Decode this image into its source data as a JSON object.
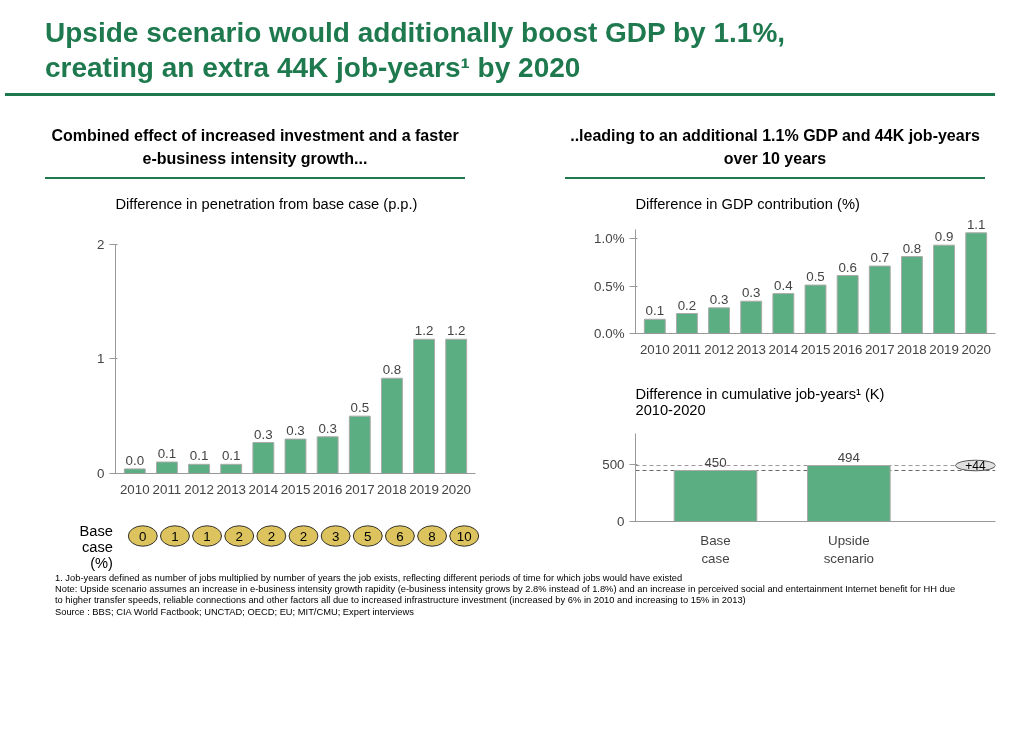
{
  "chart_data": [
    {
      "type": "bar",
      "title": "Upside scenario would additionally boost GDP by 1.1%, creating an extra 44K job-years¹ by 2020",
      "subtitle": "Combined effect of increased investment and a faster e-business intensity growth...",
      "ylabel": "Difference in penetration from base case  (p.p.)",
      "categories": [
        "2010",
        "2011",
        "2012",
        "2013",
        "2014",
        "2015",
        "2016",
        "2017",
        "2018",
        "2019",
        "2020"
      ],
      "color": "#5aae82",
      "values": [
        0.04,
        0.1,
        0.08,
        0.08,
        0.27,
        0.3,
        0.32,
        0.5,
        0.83,
        1.17,
        1.17
      ],
      "value_labels": [
        "0.0",
        "0.1",
        "0.1",
        "0.1",
        "0.3",
        "0.3",
        "0.3",
        "0.5",
        "0.8",
        "1.2",
        "1.2"
      ],
      "ylim": [
        0,
        2
      ],
      "yticks": [
        0,
        1,
        2
      ],
      "grid": false
    },
    {
      "type": "other",
      "ylabel": "Base case (%)",
      "categories": [
        "2010",
        "2011",
        "2012",
        "2013",
        "2014",
        "2015",
        "2016",
        "2017",
        "2018",
        "2019",
        "2020"
      ],
      "color": "#dcc35e",
      "values": [
        0,
        1,
        1,
        2,
        2,
        2,
        3,
        5,
        6,
        8,
        10
      ],
      "data_labels": true
    },
    {
      "type": "bar",
      "subtitle": "..leading to an additional 1.1% GDP and 44K job-years over 10 years",
      "ylabel": "Difference in GDP contribution (%)",
      "categories": [
        "2010",
        "2011",
        "2012",
        "2013",
        "2014",
        "2015",
        "2016",
        "2017",
        "2018",
        "2019",
        "2020"
      ],
      "color": "#5aae82",
      "values": [
        0.15,
        0.21,
        0.27,
        0.34,
        0.42,
        0.51,
        0.61,
        0.71,
        0.81,
        0.93,
        1.06
      ],
      "value_labels": [
        "0.1",
        "0.2",
        "0.3",
        "0.3",
        "0.4",
        "0.5",
        "0.6",
        "0.7",
        "0.8",
        "0.9",
        "1.1"
      ],
      "ylim": [
        0,
        1.1
      ],
      "yticks": [
        {
          "value": 0,
          "label": "0.0%"
        },
        {
          "value": 0.5,
          "label": "0.5%"
        },
        {
          "value": 1.0,
          "label": "1.0%"
        }
      ],
      "grid": false
    },
    {
      "type": "bar",
      "ylabel": "Difference in cumulative job-years¹  (K)\n2010-2020",
      "categories": [
        "Base case",
        "Upside scenario"
      ],
      "color": "#5aae82",
      "values": [
        450,
        494
      ],
      "data_labels": true,
      "ylim": [
        0,
        780
      ],
      "yticks": [
        0,
        500
      ],
      "grid": false,
      "ref_lines": [
        {
          "axis": "y",
          "value": 450,
          "label": null,
          "line_style": "dashed",
          "color": "#666666"
        },
        {
          "axis": "y",
          "value": 494,
          "label": null,
          "line_style": "dashed",
          "color": "#999999"
        }
      ],
      "annotations": [
        {
          "text": "+44",
          "y": 494
        },
        "1. Job-years defined as number of jobs multiplied by number of years the job exists, reflecting different periods of time for which jobs would have existed",
        "Note: Upside scenario assumes an increase in e-business intensity growth rapidity (e-business intensity grows by 2.8% instead of 1.8%) and an increase in perceived social and entertainment Internet benefit  for HH due to higher transfer speeds, reliable connections and other factors all due to increased infrastructure investment (increased by 6% in 2010 and increasing to 15% in 2013)",
        "Source : BBS; CIA World Factbook; UNCTAD; OECD; EU; MIT/CMU; Expert interviews"
      ]
    }
  ]
}
